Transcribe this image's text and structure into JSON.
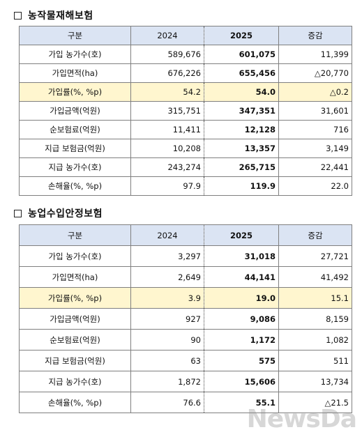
{
  "tables": [
    {
      "title": "농작물재해보험",
      "headers": [
        "구분",
        "2024",
        "2025",
        "증감"
      ],
      "rows": [
        {
          "label": "가입 농가수(호)",
          "v2024": "589,676",
          "v2025": "601,075",
          "change": "11,399"
        },
        {
          "label": "가입면적(ha)",
          "v2024": "676,226",
          "v2025": "655,456",
          "change": "△20,770"
        },
        {
          "label": "가입률(%, %p)",
          "v2024": "54.2",
          "v2025": "54.0",
          "change": "△0.2"
        },
        {
          "label": "가입금액(억원)",
          "v2024": "315,751",
          "v2025": "347,351",
          "change": "31,601"
        },
        {
          "label": "순보험료(억원)",
          "v2024": "11,411",
          "v2025": "12,128",
          "change": "716"
        },
        {
          "label": "지급 보험금(억원)",
          "v2024": "10,208",
          "v2025": "13,357",
          "change": "3,149"
        },
        {
          "label": "지급 농가수(호)",
          "v2024": "243,274",
          "v2025": "265,715",
          "change": "22,441"
        },
        {
          "label": "손해율(%, %p)",
          "v2024": "97.9",
          "v2025": "119.9",
          "change": "22.0"
        }
      ]
    },
    {
      "title": "농업수입안정보험",
      "headers": [
        "구분",
        "2024",
        "2025",
        "증감"
      ],
      "rows": [
        {
          "label": "가입 농가수(호)",
          "v2024": "3,297",
          "v2025": "31,018",
          "change": "27,721"
        },
        {
          "label": "가입면적(ha)",
          "v2024": "2,649",
          "v2025": "44,141",
          "change": "41,492"
        },
        {
          "label": "가입률(%, %p)",
          "v2024": "3.9",
          "v2025": "19.0",
          "change": "15.1"
        },
        {
          "label": "가입금액(억원)",
          "v2024": "927",
          "v2025": "9,086",
          "change": "8,159"
        },
        {
          "label": "순보험료(억원)",
          "v2024": "90",
          "v2025": "1,172",
          "change": "1,082"
        },
        {
          "label": "지급 보험금(억원)",
          "v2024": "63",
          "v2025": "575",
          "change": "511"
        },
        {
          "label": "지급 농가수(호)",
          "v2024": "1,872",
          "v2025": "15,606",
          "change": "13,734"
        },
        {
          "label": "손해율(%, %p)",
          "v2024": "76.6",
          "v2025": "55.1",
          "change": "△21.5"
        }
      ]
    }
  ],
  "highlight_color": "#fff6cf",
  "header_color": "#dbe4f3",
  "watermark": "NewsDa"
}
